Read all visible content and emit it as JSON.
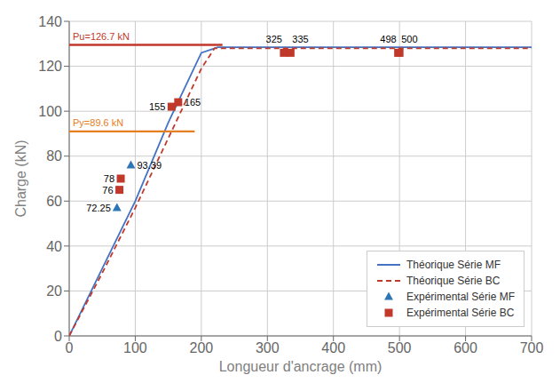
{
  "chart_data": {
    "type": "line",
    "xlabel": "Longueur d'ancrage (mm)",
    "ylabel": "Charge (kN)",
    "xlim": [
      0,
      700
    ],
    "ylim": [
      0,
      140
    ],
    "xticks": [
      0,
      100,
      200,
      300,
      400,
      500,
      600,
      700
    ],
    "yticks": [
      0,
      20,
      40,
      60,
      80,
      100,
      120,
      140
    ],
    "grid": true,
    "legend": "lower right",
    "series": [
      {
        "name": "Théorique Série MF",
        "type": "line",
        "color": "#4472c4",
        "line_style": "solid",
        "x": [
          0,
          50,
          100,
          150,
          200,
          225,
          700
        ],
        "values": [
          0,
          30,
          60,
          95,
          126,
          128.5,
          128.5
        ]
      },
      {
        "name": "Théorique Série BC",
        "type": "line",
        "color": "#c0392b",
        "line_style": "dashed",
        "x": [
          0,
          50,
          100,
          150,
          200,
          220,
          700
        ],
        "values": [
          0,
          28,
          57,
          88,
          119,
          128.0,
          128.0
        ]
      },
      {
        "name": "Expérimental Série MF",
        "type": "scatter",
        "marker": "triangle",
        "color": "#2e75b6",
        "x": [
          72.25,
          93.39
        ],
        "values": [
          57,
          76
        ],
        "point_labels": [
          "72.25",
          "93.39"
        ]
      },
      {
        "name": "Expérimental Série BC",
        "type": "scatter",
        "marker": "square",
        "color": "#c0392b",
        "x": [
          76,
          78,
          155,
          165,
          325,
          335,
          498,
          500
        ],
        "values": [
          65,
          70,
          102,
          104,
          126,
          126,
          126,
          126
        ],
        "point_labels": [
          "76",
          "78",
          "155",
          "165",
          "325",
          "335",
          "498",
          "500"
        ]
      }
    ],
    "annotations": [
      {
        "type": "hline",
        "text": "Pu=126.7 kN",
        "color": "#c0392b",
        "y": 129.5,
        "x": [
          0,
          232
        ]
      },
      {
        "type": "hline",
        "text": "Py=89.6 kN",
        "color": "#e67e22",
        "y": 91.0,
        "x": [
          0,
          190
        ]
      }
    ]
  }
}
